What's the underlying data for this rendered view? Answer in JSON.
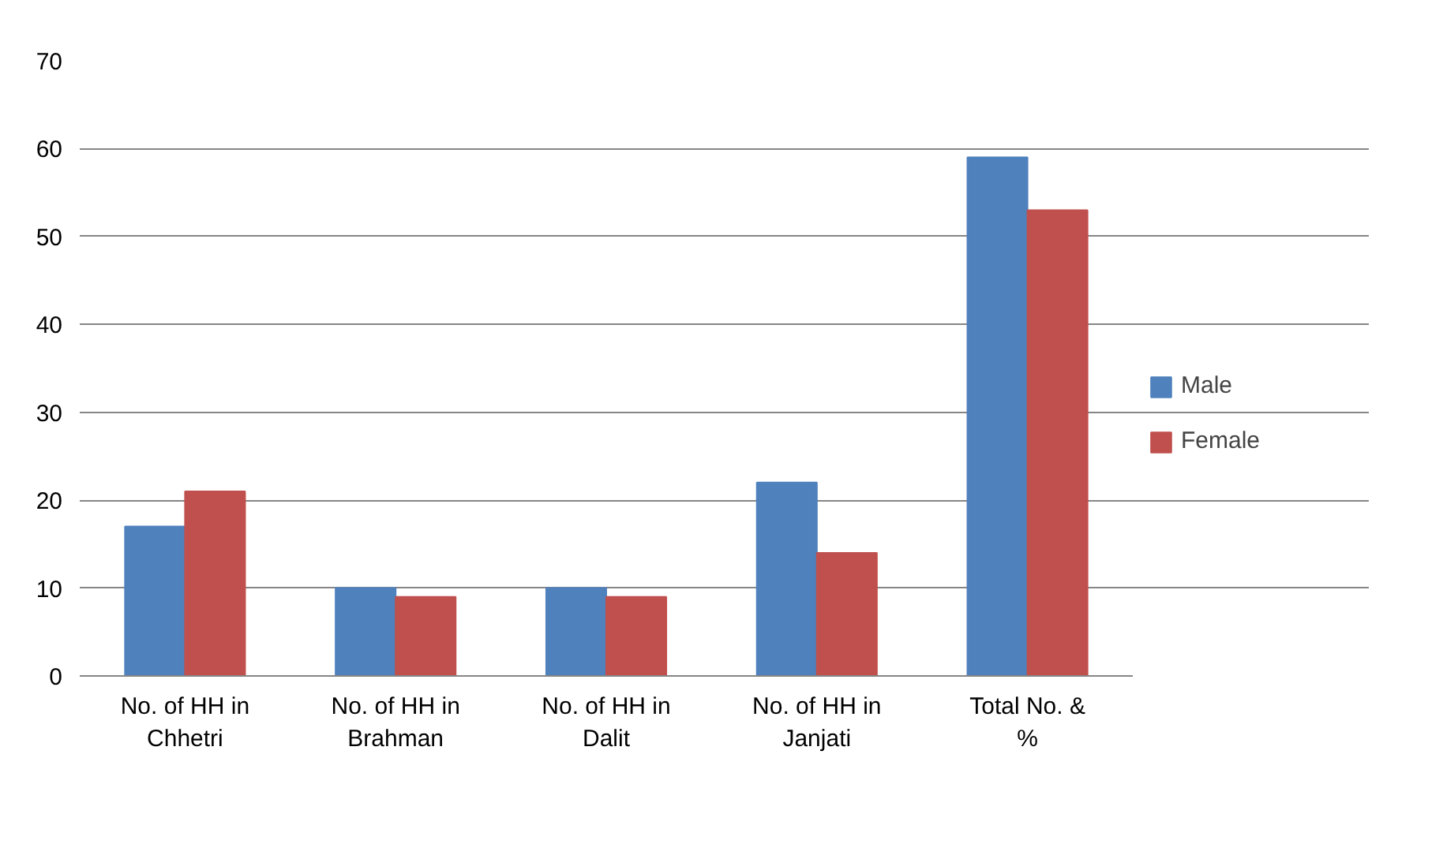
{
  "chart_data": {
    "type": "bar",
    "categories": [
      "No. of HH in Chhetri",
      "No. of HH in Brahman",
      "No. of HH in Dalit",
      "No. of HH in Janjati",
      "Total No. & %"
    ],
    "series": [
      {
        "name": "Male",
        "color": "#4f81bd",
        "values": [
          17,
          10,
          10,
          22,
          59
        ]
      },
      {
        "name": "Female",
        "color": "#c0504d",
        "values": [
          21,
          9,
          9,
          14,
          53
        ]
      }
    ],
    "ylim": [
      0,
      70
    ],
    "yticks": [
      0,
      10,
      20,
      30,
      40,
      50,
      60,
      70
    ],
    "grid": "y",
    "legend": "right"
  }
}
